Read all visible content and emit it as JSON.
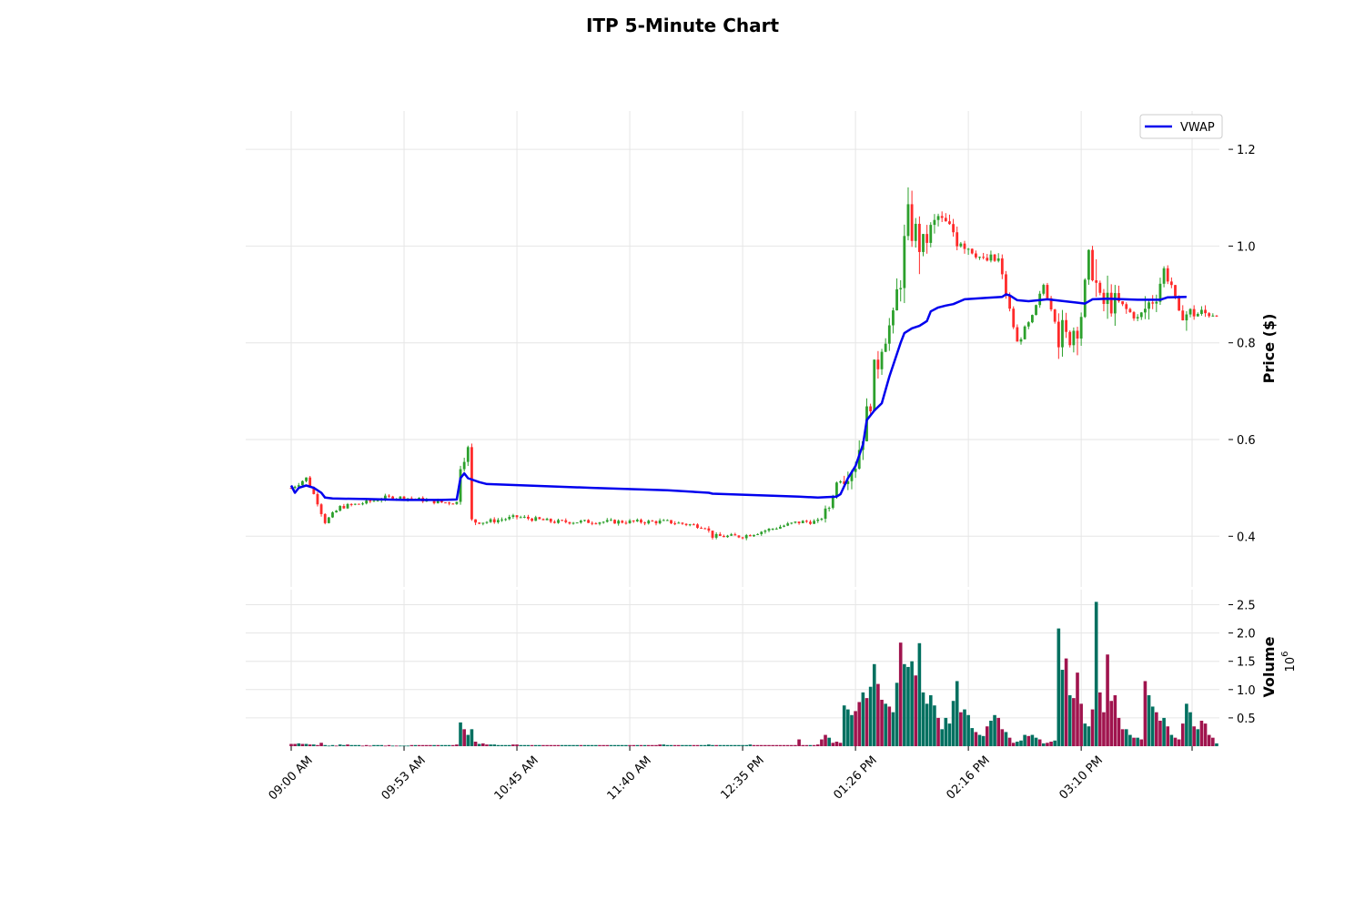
{
  "chart_data": {
    "type": "candlestick",
    "title": "ITP 5-Minute Chart",
    "price_panel": {
      "ylabel": "Price ($)",
      "ylim": [
        0.32,
        1.28
      ],
      "yticks": [
        0.4,
        0.6,
        0.8,
        1.0,
        1.2
      ],
      "ytick_labels": [
        "0.4",
        "0.6",
        "0.8",
        "1.0",
        "1.2"
      ],
      "grid": true
    },
    "volume_panel": {
      "ylabel": "Volume",
      "multiplier_label": "10",
      "multiplier_exponent": "6",
      "ylim": [
        0,
        2.6
      ],
      "yticks": [
        0.5,
        1.0,
        1.5,
        2.0,
        2.5
      ],
      "ytick_labels": [
        "0.5",
        "1.0",
        "1.5",
        "2.0",
        "2.5"
      ],
      "grid": true
    },
    "x_axis": {
      "tick_labels": [
        "09:00 AM",
        "09:53 AM",
        "10:45 AM",
        "11:40 AM",
        "12:35 PM",
        "01:26 PM",
        "02:16 PM",
        "03:10 PM"
      ]
    },
    "legend": {
      "entries": [
        {
          "name": "VWAP",
          "color": "#0000ee"
        }
      ],
      "placement": "top-right"
    },
    "colors": {
      "up": "#2ca02c",
      "down": "#ff2a2a",
      "vwap": "#0000ee",
      "volume_up": "#007060",
      "volume_down": "#a0144e",
      "grid": "#e6e6e6"
    },
    "vwap": [
      [
        0,
        0.505
      ],
      [
        1,
        0.49
      ],
      [
        2,
        0.5
      ],
      [
        4,
        0.505
      ],
      [
        6,
        0.5
      ],
      [
        8,
        0.49
      ],
      [
        9,
        0.48
      ],
      [
        11,
        0.478
      ],
      [
        20,
        0.477
      ],
      [
        30,
        0.475
      ],
      [
        40,
        0.475
      ],
      [
        44,
        0.476
      ],
      [
        45,
        0.52
      ],
      [
        46,
        0.53
      ],
      [
        47,
        0.52
      ],
      [
        50,
        0.512
      ],
      [
        52,
        0.508
      ],
      [
        80,
        0.5
      ],
      [
        100,
        0.495
      ],
      [
        111,
        0.49
      ],
      [
        112,
        0.488
      ],
      [
        135,
        0.482
      ],
      [
        140,
        0.48
      ],
      [
        145,
        0.482
      ],
      [
        146,
        0.487
      ],
      [
        148,
        0.52
      ],
      [
        150,
        0.545
      ],
      [
        152,
        0.59
      ],
      [
        153,
        0.64
      ],
      [
        155,
        0.66
      ],
      [
        157,
        0.675
      ],
      [
        159,
        0.73
      ],
      [
        162,
        0.8
      ],
      [
        163,
        0.82
      ],
      [
        165,
        0.83
      ],
      [
        167,
        0.835
      ],
      [
        169,
        0.845
      ],
      [
        170,
        0.865
      ],
      [
        172,
        0.873
      ],
      [
        174,
        0.877
      ],
      [
        176,
        0.88
      ],
      [
        179,
        0.89
      ],
      [
        185,
        0.893
      ],
      [
        189,
        0.895
      ],
      [
        190,
        0.9
      ],
      [
        191,
        0.898
      ],
      [
        193,
        0.888
      ],
      [
        196,
        0.886
      ],
      [
        201,
        0.89
      ],
      [
        209,
        0.883
      ],
      [
        211,
        0.881
      ],
      [
        213,
        0.89
      ],
      [
        217,
        0.891
      ],
      [
        225,
        0.889
      ],
      [
        231,
        0.889
      ],
      [
        233,
        0.894
      ],
      [
        238,
        0.895
      ]
    ],
    "volume_million": [
      0.04,
      0.04,
      0.05,
      0.04,
      0.04,
      0.03,
      0.03,
      0.02,
      0.06,
      0.02,
      0.01,
      0.02,
      0.01,
      0.03,
      0.02,
      0.03,
      0.02,
      0.02,
      0.02,
      0.01,
      0.02,
      0.01,
      0.02,
      0.02,
      0.02,
      0.01,
      0.02,
      0.01,
      0.01,
      0.01,
      0.01,
      0.01,
      0.02,
      0.02,
      0.02,
      0.02,
      0.02,
      0.02,
      0.02,
      0.02,
      0.02,
      0.02,
      0.02,
      0.02,
      0.03,
      0.42,
      0.3,
      0.2,
      0.3,
      0.08,
      0.04,
      0.05,
      0.03,
      0.03,
      0.03,
      0.02,
      0.02,
      0.02,
      0.02,
      0.03,
      0.03,
      0.02,
      0.02,
      0.02,
      0.02,
      0.02,
      0.02,
      0.02,
      0.02,
      0.02,
      0.02,
      0.02,
      0.02,
      0.02,
      0.02,
      0.02,
      0.02,
      0.02,
      0.02,
      0.02,
      0.02,
      0.02,
      0.02,
      0.02,
      0.02,
      0.02,
      0.02,
      0.02,
      0.02,
      0.02,
      0.02,
      0.02,
      0.02,
      0.02,
      0.02,
      0.02,
      0.02,
      0.02,
      0.03,
      0.03,
      0.02,
      0.02,
      0.02,
      0.02,
      0.02,
      0.02,
      0.02,
      0.02,
      0.02,
      0.02,
      0.02,
      0.03,
      0.02,
      0.02,
      0.02,
      0.02,
      0.02,
      0.02,
      0.02,
      0.02,
      0.02,
      0.02,
      0.03,
      0.02,
      0.02,
      0.02,
      0.02,
      0.02,
      0.02,
      0.02,
      0.02,
      0.02,
      0.02,
      0.02,
      0.02,
      0.12,
      0.02,
      0.02,
      0.02,
      0.02,
      0.03,
      0.12,
      0.2,
      0.15,
      0.06,
      0.08,
      0.06,
      0.72,
      0.65,
      0.55,
      0.62,
      0.78,
      0.95,
      0.85,
      1.05,
      1.45,
      1.1,
      0.82,
      0.75,
      0.7,
      0.6,
      1.12,
      1.83,
      1.45,
      1.4,
      1.5,
      1.25,
      1.82,
      0.95,
      0.75,
      0.9,
      0.72,
      0.5,
      0.3,
      0.5,
      0.4,
      0.8,
      1.15,
      0.6,
      0.65,
      0.55,
      0.32,
      0.25,
      0.2,
      0.18,
      0.35,
      0.45,
      0.55,
      0.5,
      0.3,
      0.25,
      0.15,
      0.06,
      0.08,
      0.1,
      0.2,
      0.18,
      0.2,
      0.15,
      0.12,
      0.05,
      0.06,
      0.08,
      0.1,
      2.08,
      1.35,
      1.55,
      0.9,
      0.85,
      1.3,
      0.75,
      0.4,
      0.35,
      0.65,
      2.55,
      0.95,
      0.6,
      1.62,
      0.8,
      0.9,
      0.5,
      0.3,
      0.3,
      0.2,
      0.15,
      0.15,
      0.12,
      1.15,
      0.9,
      0.7,
      0.6,
      0.45,
      0.5,
      0.35,
      0.2,
      0.15,
      0.12,
      0.4,
      0.75,
      0.6,
      0.35,
      0.3,
      0.45,
      0.4,
      0.2,
      0.15,
      0.05
    ]
  }
}
